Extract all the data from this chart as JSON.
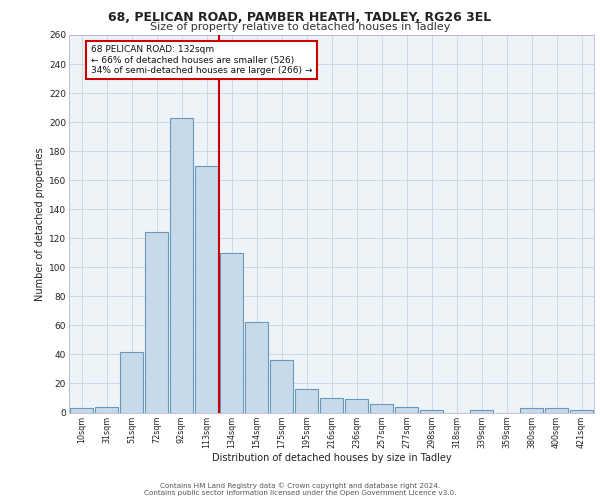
{
  "title1": "68, PELICAN ROAD, PAMBER HEATH, TADLEY, RG26 3EL",
  "title2": "Size of property relative to detached houses in Tadley",
  "xlabel": "Distribution of detached houses by size in Tadley",
  "ylabel": "Number of detached properties",
  "categories": [
    "10sqm",
    "31sqm",
    "51sqm",
    "72sqm",
    "92sqm",
    "113sqm",
    "134sqm",
    "154sqm",
    "175sqm",
    "195sqm",
    "216sqm",
    "236sqm",
    "257sqm",
    "277sqm",
    "298sqm",
    "318sqm",
    "339sqm",
    "359sqm",
    "380sqm",
    "400sqm",
    "421sqm"
  ],
  "values": [
    3,
    4,
    42,
    124,
    203,
    170,
    110,
    62,
    36,
    16,
    10,
    9,
    6,
    4,
    2,
    0,
    2,
    0,
    3,
    3,
    2
  ],
  "bar_color": "#c8daea",
  "bar_edge_color": "#6699bb",
  "vline_color": "#cc0000",
  "annotation_box_color": "#ffffff",
  "annotation_box_edge": "#cc0000",
  "property_line_label": "68 PELICAN ROAD: 132sqm",
  "annotation_line1": "← 66% of detached houses are smaller (526)",
  "annotation_line2": "34% of semi-detached houses are larger (266) →",
  "ylim": [
    0,
    260
  ],
  "yticks": [
    0,
    20,
    40,
    60,
    80,
    100,
    120,
    140,
    160,
    180,
    200,
    220,
    240,
    260
  ],
  "footer1": "Contains HM Land Registry data © Crown copyright and database right 2024.",
  "footer2": "Contains public sector information licensed under the Open Government Licence v3.0.",
  "bg_color": "#ffffff",
  "plot_bg_color": "#eef3f8"
}
